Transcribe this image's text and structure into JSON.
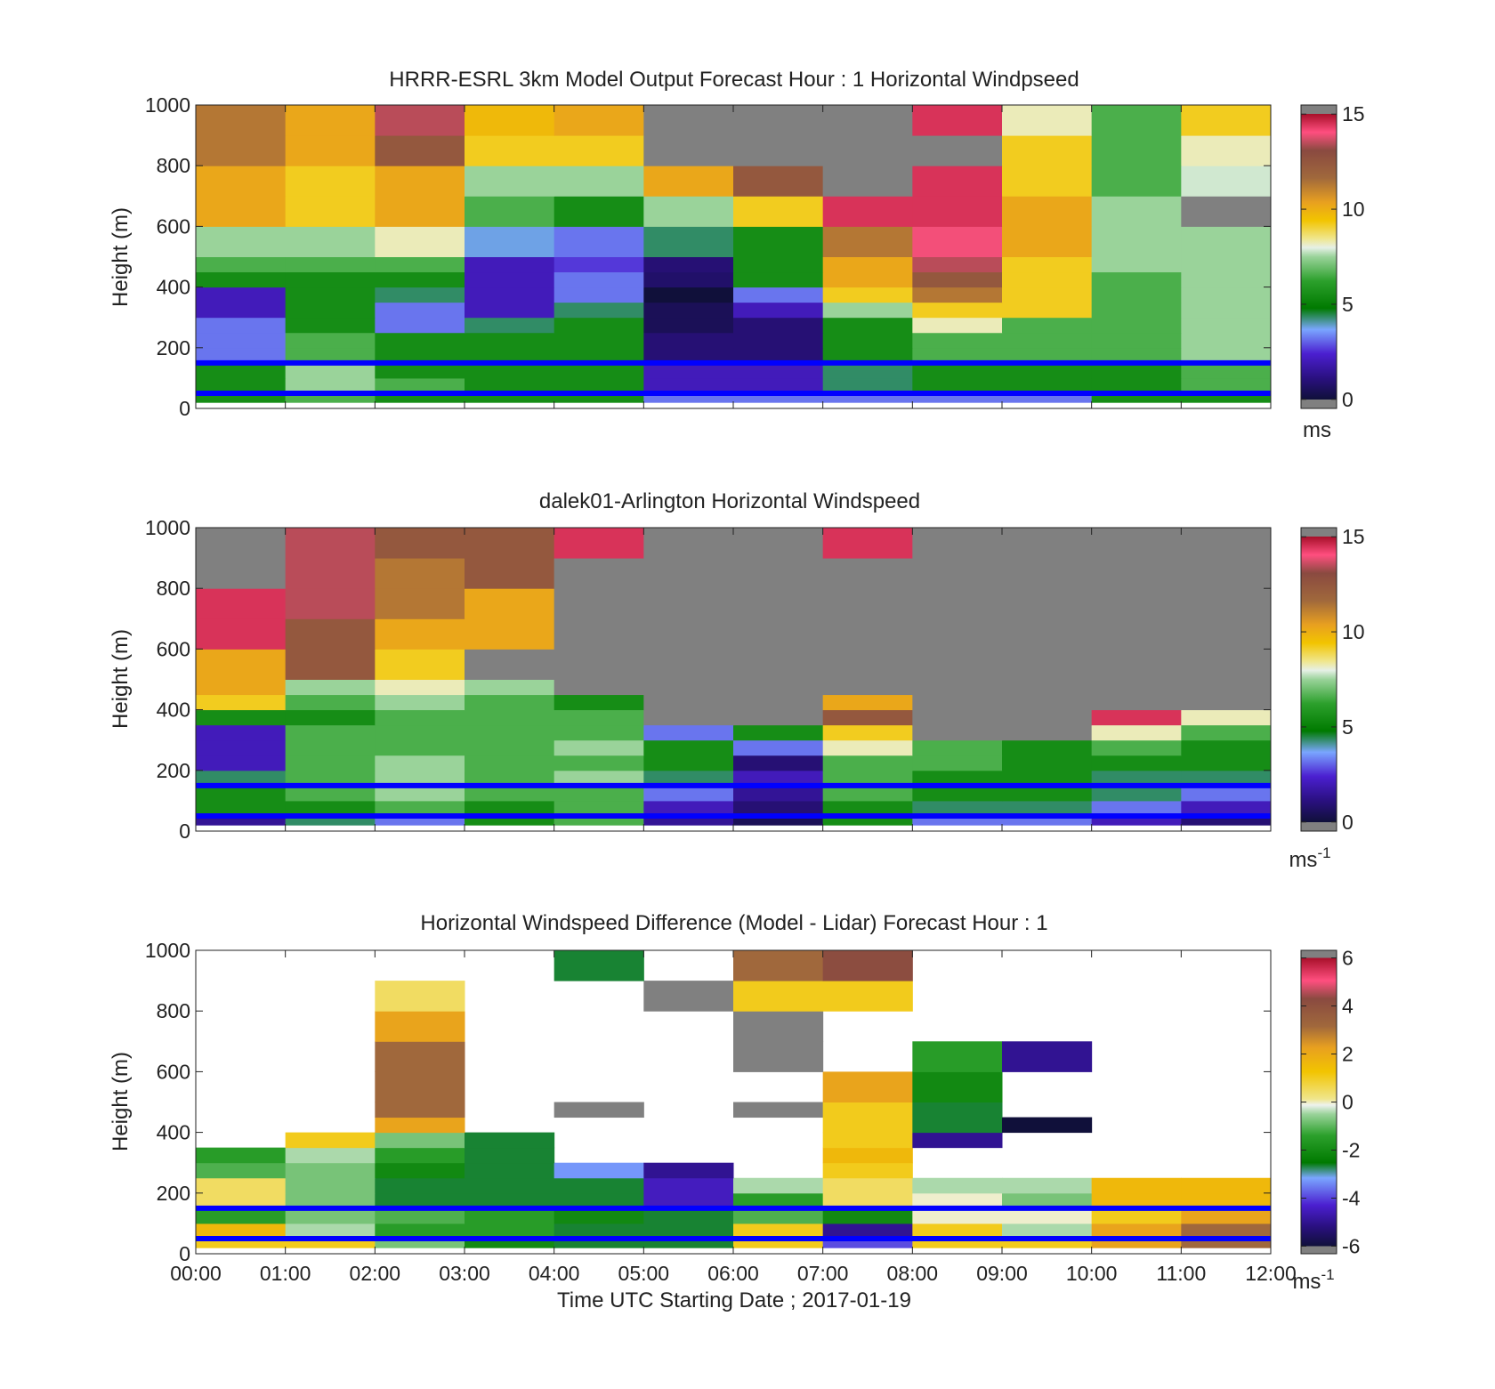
{
  "figure": {
    "xlabel": "Time UTC  Starting Date ; 2017-01-19"
  },
  "chart_data": [
    {
      "type": "heatmap",
      "title": "HRRR-ESRL 3km Model Output   Forecast Hour : 1 Horizontal Windpseed",
      "ylabel": "Height (m)",
      "xlabel": "",
      "ylim": [
        0,
        1000
      ],
      "xlim": [
        "00:00",
        "12:00"
      ],
      "yticks": [
        "0",
        "200",
        "400",
        "600",
        "800",
        "1000"
      ],
      "colorbar": {
        "min": 0,
        "max": 15,
        "ticks": [
          "0",
          "5",
          "10",
          "15"
        ],
        "unit": "ms",
        "unit_sup": ""
      },
      "reference_lines_m": [
        50,
        150
      ],
      "reference_line_color": "#0000ff",
      "x_bins_hours": [
        0,
        1,
        2,
        3,
        4,
        5,
        6,
        7,
        8,
        9,
        10,
        11,
        12
      ],
      "y_bins_m": [
        20,
        60,
        100,
        150,
        200,
        250,
        300,
        350,
        400,
        450,
        500,
        600,
        700,
        800,
        900,
        1000
      ],
      "values": [
        [
          5,
          6,
          5,
          5,
          5,
          3,
          3,
          3,
          3,
          3,
          5,
          5
        ],
        [
          5,
          7,
          6,
          5,
          5,
          2,
          2,
          4,
          5,
          5,
          5,
          6
        ],
        [
          5,
          7,
          5,
          5,
          5,
          2,
          2,
          4,
          5,
          5,
          5,
          6
        ],
        [
          3,
          6,
          5,
          5,
          5,
          1,
          1,
          5,
          6,
          6,
          6,
          7
        ],
        [
          3,
          6,
          5,
          5,
          5,
          1,
          1,
          5,
          6,
          6,
          6,
          7
        ],
        [
          3,
          5,
          3,
          4,
          5,
          0.5,
          1,
          5,
          8,
          6,
          6,
          7
        ],
        [
          2,
          5,
          3,
          2,
          4,
          0.5,
          2,
          7,
          9,
          9,
          6,
          7
        ],
        [
          2,
          5,
          4,
          2,
          3,
          0,
          3,
          9,
          11,
          9,
          6,
          7
        ],
        [
          5,
          5,
          5,
          2,
          3,
          0.8,
          5,
          10,
          12,
          9,
          6,
          7
        ],
        [
          6,
          6,
          6,
          2,
          2.5,
          1,
          5,
          10,
          13,
          9,
          7,
          7
        ],
        [
          7,
          7,
          8,
          3.5,
          3,
          4,
          5,
          11,
          13.5,
          10,
          7,
          7
        ],
        [
          10,
          9,
          10,
          6,
          5,
          7,
          9,
          14,
          14,
          10,
          7,
          15
        ],
        [
          10,
          9,
          10,
          7,
          7,
          10,
          12,
          15,
          14,
          9,
          6,
          7.5
        ],
        [
          11,
          10,
          12,
          9,
          9,
          15,
          15,
          15,
          15,
          9,
          6,
          8
        ],
        [
          11,
          10,
          13,
          9.5,
          10,
          15,
          15,
          15,
          14,
          8,
          6,
          9
        ]
      ]
    },
    {
      "type": "heatmap",
      "title": "dalek01-Arlington  Horizontal Windspeed",
      "ylabel": "Height (m)",
      "xlabel": "",
      "ylim": [
        0,
        1000
      ],
      "xlim": [
        "00:00",
        "12:00"
      ],
      "yticks": [
        "0",
        "200",
        "400",
        "600",
        "800",
        "1000"
      ],
      "colorbar": {
        "min": 0,
        "max": 15,
        "ticks": [
          "0",
          "5",
          "10",
          "15"
        ],
        "unit": "ms",
        "unit_sup": "-1"
      },
      "reference_lines_m": [
        50,
        150
      ],
      "reference_line_color": "#0000ff",
      "x_bins_hours": [
        0,
        1,
        2,
        3,
        4,
        5,
        6,
        7,
        8,
        9,
        10,
        11,
        12
      ],
      "y_bins_m": [
        20,
        60,
        100,
        150,
        200,
        250,
        300,
        350,
        400,
        450,
        500,
        600,
        700,
        800,
        900,
        1000
      ],
      "values": [
        [
          1.5,
          4,
          3,
          5,
          6,
          1.5,
          0.5,
          5,
          3,
          3,
          2,
          1
        ],
        [
          5,
          5,
          6,
          5,
          6,
          2,
          1,
          5,
          4,
          4,
          3,
          2
        ],
        [
          5,
          6,
          7,
          6,
          6,
          3,
          1.5,
          6,
          5,
          5,
          4,
          3
        ],
        [
          4,
          6,
          7,
          6,
          7,
          4,
          2,
          6,
          5,
          5,
          4,
          4
        ],
        [
          2,
          6,
          7,
          6,
          6,
          5,
          1,
          6,
          6,
          5,
          5,
          5
        ],
        [
          2,
          6,
          6,
          6,
          7,
          5,
          3,
          8,
          6,
          5,
          6,
          5
        ],
        [
          2,
          6,
          6,
          6,
          6,
          3,
          5,
          9,
          15,
          15,
          8,
          6
        ],
        [
          5,
          5,
          6,
          6,
          6,
          15,
          15,
          12,
          15,
          15,
          14,
          8
        ],
        [
          9,
          6,
          7,
          6,
          5,
          15,
          15,
          10,
          15,
          15,
          15,
          15
        ],
        [
          10,
          7,
          8,
          7,
          15,
          15,
          15,
          15,
          15,
          15,
          15,
          15
        ],
        [
          10,
          12,
          9,
          15,
          15,
          15,
          15,
          15,
          15,
          15,
          15,
          15
        ],
        [
          14,
          12,
          10,
          10,
          15,
          15,
          15,
          15,
          15,
          15,
          15,
          15
        ],
        [
          14,
          13,
          11,
          10,
          15,
          15,
          15,
          15,
          15,
          15,
          15,
          15
        ],
        [
          15,
          13,
          11,
          12,
          15,
          15,
          15,
          15,
          15,
          15,
          15,
          15
        ],
        [
          15,
          13,
          12,
          12,
          14,
          15,
          15,
          14,
          15,
          15,
          15,
          15
        ]
      ]
    },
    {
      "type": "heatmap",
      "title": "Horizontal Windspeed Difference (Model - Lidar) Forecast Hour : 1",
      "ylabel": "Height (m)",
      "xlabel": "Time UTC  Starting Date ; 2017-01-19",
      "ylim": [
        0,
        1000
      ],
      "xlim": [
        "00:00",
        "12:00"
      ],
      "xticks": [
        "00:00",
        "01:00",
        "02:00",
        "03:00",
        "04:00",
        "05:00",
        "06:00",
        "07:00",
        "08:00",
        "09:00",
        "10:00",
        "11:00",
        "12:00"
      ],
      "yticks": [
        "0",
        "200",
        "400",
        "600",
        "800",
        "1000"
      ],
      "colorbar": {
        "min": -6,
        "max": 6,
        "ticks": [
          "-6",
          "-4",
          "-2",
          "0",
          "2",
          "4",
          "6"
        ],
        "unit": "ms",
        "unit_sup": "-1"
      },
      "reference_lines_m": [
        50,
        150
      ],
      "reference_line_color": "#0000ff",
      "x_bins_hours": [
        0,
        1,
        2,
        3,
        4,
        5,
        6,
        7,
        8,
        9,
        10,
        11,
        12
      ],
      "y_bins_m": [
        20,
        60,
        100,
        150,
        200,
        250,
        300,
        350,
        400,
        450,
        500,
        600,
        700,
        800,
        900,
        1000
      ],
      "values": [
        [
          1,
          1,
          -1,
          -2.5,
          -3,
          -3,
          1,
          -4,
          1,
          1,
          2,
          3
        ],
        [
          1.5,
          -0.5,
          -2,
          -2,
          -3,
          -3,
          1,
          -5,
          1,
          -0.5,
          2,
          3
        ],
        [
          -2,
          -1,
          -1.5,
          -2,
          -2.5,
          -3,
          -1.5,
          -2.5,
          0,
          0,
          1,
          2
        ],
        [
          0.5,
          -1,
          -3,
          -3,
          -3,
          -4.5,
          -2,
          0.5,
          0,
          -1,
          1.5,
          1.5
        ],
        [
          0.5,
          -1,
          -3,
          -3,
          -3,
          -4.5,
          -0.5,
          0.5,
          -0.5,
          -0.5,
          1.5,
          1.5
        ],
        [
          -1.5,
          -1,
          -2.5,
          -3,
          -3.5,
          -5,
          null,
          1,
          null,
          null,
          null,
          null
        ],
        [
          -2,
          -0.5,
          -2,
          -3,
          null,
          null,
          null,
          1.5,
          null,
          null,
          null,
          null
        ],
        [
          null,
          1,
          -1,
          -3,
          null,
          null,
          null,
          1,
          -5,
          null,
          null,
          null
        ],
        [
          null,
          null,
          2,
          null,
          null,
          null,
          null,
          1,
          -3,
          -6,
          null,
          null
        ],
        [
          null,
          null,
          3,
          null,
          6,
          null,
          6,
          1,
          -3,
          null,
          null,
          null
        ],
        [
          null,
          null,
          3,
          null,
          null,
          null,
          null,
          2,
          -2.5,
          null,
          null,
          null
        ],
        [
          null,
          null,
          3,
          null,
          null,
          null,
          6,
          null,
          -2,
          -5,
          null,
          null
        ],
        [
          null,
          null,
          2,
          null,
          null,
          null,
          6,
          null,
          null,
          null,
          null,
          null
        ],
        [
          null,
          null,
          0.5,
          null,
          null,
          6,
          1,
          1,
          null,
          null,
          null,
          null
        ],
        [
          null,
          null,
          null,
          null,
          -3,
          null,
          3,
          4,
          null,
          null,
          null,
          null
        ]
      ]
    }
  ]
}
